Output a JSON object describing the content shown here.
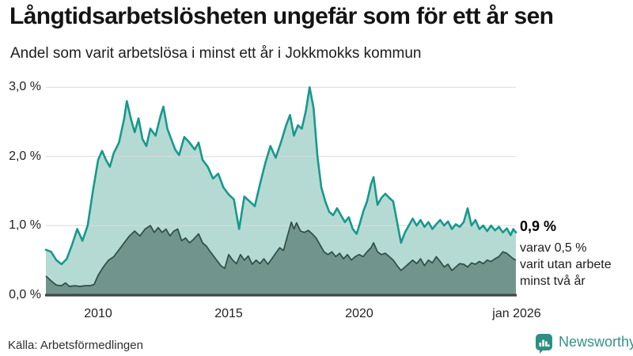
{
  "header": {
    "title": "Långtidsarbetslösheten ungefär som för ett år sen",
    "subtitle": "Andel som varit arbetslösa i minst ett år i Jokkmokks kommun"
  },
  "footer": {
    "source": "Källa: Arbetsförmedlingen",
    "brand": "Newsworthy"
  },
  "colors": {
    "accent_teal": "#17998c",
    "light_fill": "#b5dad4",
    "dark_line": "#2d4d47",
    "dark_fill": "#71958d",
    "gridline": "#d9d9d9",
    "axis": "#444444",
    "brand_teal": "#2f8e84"
  },
  "chart_data": {
    "type": "area",
    "title": "Andel som varit arbetslösa i minst ett år i Jokkmokks kommun",
    "xlabel": "",
    "ylabel": "",
    "xlim": [
      2008,
      2026.08
    ],
    "ylim": [
      0,
      3.1
    ],
    "grid": "horizontal",
    "y_ticks": [
      {
        "label": "3,0 %",
        "value": 3
      },
      {
        "label": "2,0 %",
        "value": 2
      },
      {
        "label": "1,0 %",
        "value": 1
      },
      {
        "label": "0,0 %",
        "value": 0
      }
    ],
    "x_ticks": [
      {
        "label": "2010",
        "year": 2010
      },
      {
        "label": "2015",
        "year": 2015
      },
      {
        "label": "2020",
        "year": 2020
      },
      {
        "label": "jan 2026",
        "year": 2026.04
      }
    ],
    "annotation": {
      "value_label": "0,9 %",
      "lines": [
        "varav 0,5 %",
        "varit utan arbete",
        "minst två år"
      ]
    },
    "series": [
      {
        "name": "Arbetslösa minst ett år",
        "line_color": "#17998c",
        "fill_color": "#b5dad4",
        "points": [
          [
            2008.0,
            0.65
          ],
          [
            2008.2,
            0.62
          ],
          [
            2008.4,
            0.5
          ],
          [
            2008.6,
            0.44
          ],
          [
            2008.8,
            0.52
          ],
          [
            2009.0,
            0.72
          ],
          [
            2009.2,
            0.95
          ],
          [
            2009.4,
            0.78
          ],
          [
            2009.6,
            1.0
          ],
          [
            2009.8,
            1.5
          ],
          [
            2010.0,
            1.95
          ],
          [
            2010.15,
            2.08
          ],
          [
            2010.3,
            1.95
          ],
          [
            2010.45,
            1.85
          ],
          [
            2010.6,
            2.05
          ],
          [
            2010.8,
            2.2
          ],
          [
            2011.0,
            2.55
          ],
          [
            2011.1,
            2.8
          ],
          [
            2011.25,
            2.55
          ],
          [
            2011.4,
            2.35
          ],
          [
            2011.55,
            2.55
          ],
          [
            2011.7,
            2.25
          ],
          [
            2011.85,
            2.15
          ],
          [
            2012.0,
            2.4
          ],
          [
            2012.2,
            2.3
          ],
          [
            2012.4,
            2.6
          ],
          [
            2012.5,
            2.72
          ],
          [
            2012.65,
            2.4
          ],
          [
            2012.8,
            2.25
          ],
          [
            2012.95,
            2.1
          ],
          [
            2013.1,
            2.02
          ],
          [
            2013.3,
            2.28
          ],
          [
            2013.5,
            2.2
          ],
          [
            2013.7,
            2.1
          ],
          [
            2013.85,
            2.2
          ],
          [
            2014.0,
            1.95
          ],
          [
            2014.2,
            1.85
          ],
          [
            2014.4,
            1.68
          ],
          [
            2014.6,
            1.75
          ],
          [
            2014.8,
            1.55
          ],
          [
            2015.0,
            1.45
          ],
          [
            2015.2,
            1.38
          ],
          [
            2015.4,
            0.95
          ],
          [
            2015.6,
            1.42
          ],
          [
            2015.8,
            1.35
          ],
          [
            2016.0,
            1.28
          ],
          [
            2016.2,
            1.6
          ],
          [
            2016.4,
            1.9
          ],
          [
            2016.6,
            2.15
          ],
          [
            2016.8,
            1.98
          ],
          [
            2017.0,
            2.2
          ],
          [
            2017.2,
            2.45
          ],
          [
            2017.35,
            2.6
          ],
          [
            2017.5,
            2.3
          ],
          [
            2017.65,
            2.45
          ],
          [
            2017.8,
            2.4
          ],
          [
            2017.95,
            2.65
          ],
          [
            2018.1,
            3.0
          ],
          [
            2018.25,
            2.7
          ],
          [
            2018.4,
            2.0
          ],
          [
            2018.55,
            1.55
          ],
          [
            2018.7,
            1.35
          ],
          [
            2018.85,
            1.2
          ],
          [
            2019.0,
            1.15
          ],
          [
            2019.15,
            1.25
          ],
          [
            2019.3,
            1.15
          ],
          [
            2019.45,
            1.05
          ],
          [
            2019.6,
            1.12
          ],
          [
            2019.75,
            0.95
          ],
          [
            2019.9,
            0.88
          ],
          [
            2020.0,
            1.0
          ],
          [
            2020.15,
            1.2
          ],
          [
            2020.3,
            1.35
          ],
          [
            2020.45,
            1.6
          ],
          [
            2020.55,
            1.7
          ],
          [
            2020.7,
            1.3
          ],
          [
            2020.85,
            1.4
          ],
          [
            2021.0,
            1.46
          ],
          [
            2021.15,
            1.4
          ],
          [
            2021.3,
            1.35
          ],
          [
            2021.45,
            1.05
          ],
          [
            2021.6,
            0.75
          ],
          [
            2021.75,
            0.9
          ],
          [
            2021.9,
            1.0
          ],
          [
            2022.05,
            1.1
          ],
          [
            2022.2,
            1.0
          ],
          [
            2022.35,
            1.08
          ],
          [
            2022.5,
            0.98
          ],
          [
            2022.65,
            1.05
          ],
          [
            2022.8,
            0.95
          ],
          [
            2022.95,
            1.02
          ],
          [
            2023.1,
            1.08
          ],
          [
            2023.25,
            1.0
          ],
          [
            2023.4,
            1.06
          ],
          [
            2023.55,
            0.95
          ],
          [
            2023.7,
            1.02
          ],
          [
            2023.85,
            0.98
          ],
          [
            2024.0,
            1.05
          ],
          [
            2024.15,
            1.25
          ],
          [
            2024.3,
            1.0
          ],
          [
            2024.45,
            1.08
          ],
          [
            2024.6,
            0.95
          ],
          [
            2024.75,
            1.0
          ],
          [
            2024.9,
            0.92
          ],
          [
            2025.05,
            1.0
          ],
          [
            2025.2,
            0.93
          ],
          [
            2025.35,
            0.98
          ],
          [
            2025.5,
            0.9
          ],
          [
            2025.65,
            0.96
          ],
          [
            2025.8,
            0.86
          ],
          [
            2025.9,
            0.95
          ],
          [
            2026.0,
            0.9
          ]
        ]
      },
      {
        "name": "varav utan arbete minst två år",
        "line_color": "#2d4d47",
        "fill_color": "#71958d",
        "points": [
          [
            2008.0,
            0.27
          ],
          [
            2008.2,
            0.2
          ],
          [
            2008.4,
            0.14
          ],
          [
            2008.6,
            0.13
          ],
          [
            2008.75,
            0.17
          ],
          [
            2008.9,
            0.12
          ],
          [
            2009.1,
            0.13
          ],
          [
            2009.3,
            0.12
          ],
          [
            2009.5,
            0.13
          ],
          [
            2009.7,
            0.13
          ],
          [
            2009.85,
            0.15
          ],
          [
            2010.0,
            0.28
          ],
          [
            2010.2,
            0.4
          ],
          [
            2010.4,
            0.5
          ],
          [
            2010.6,
            0.55
          ],
          [
            2010.8,
            0.65
          ],
          [
            2011.0,
            0.75
          ],
          [
            2011.2,
            0.85
          ],
          [
            2011.4,
            0.92
          ],
          [
            2011.6,
            0.85
          ],
          [
            2011.8,
            0.95
          ],
          [
            2012.0,
            1.0
          ],
          [
            2012.15,
            0.9
          ],
          [
            2012.3,
            0.97
          ],
          [
            2012.45,
            0.9
          ],
          [
            2012.6,
            0.95
          ],
          [
            2012.75,
            0.85
          ],
          [
            2012.9,
            0.92
          ],
          [
            2013.05,
            0.95
          ],
          [
            2013.2,
            0.78
          ],
          [
            2013.35,
            0.82
          ],
          [
            2013.5,
            0.75
          ],
          [
            2013.65,
            0.8
          ],
          [
            2013.85,
            0.88
          ],
          [
            2014.0,
            0.75
          ],
          [
            2014.15,
            0.7
          ],
          [
            2014.3,
            0.62
          ],
          [
            2014.5,
            0.52
          ],
          [
            2014.7,
            0.42
          ],
          [
            2014.85,
            0.38
          ],
          [
            2015.0,
            0.58
          ],
          [
            2015.15,
            0.5
          ],
          [
            2015.3,
            0.45
          ],
          [
            2015.45,
            0.58
          ],
          [
            2015.6,
            0.5
          ],
          [
            2015.75,
            0.56
          ],
          [
            2015.9,
            0.44
          ],
          [
            2016.05,
            0.5
          ],
          [
            2016.2,
            0.45
          ],
          [
            2016.35,
            0.52
          ],
          [
            2016.5,
            0.44
          ],
          [
            2016.65,
            0.52
          ],
          [
            2016.8,
            0.6
          ],
          [
            2016.95,
            0.68
          ],
          [
            2017.1,
            0.64
          ],
          [
            2017.25,
            0.85
          ],
          [
            2017.4,
            1.05
          ],
          [
            2017.5,
            0.95
          ],
          [
            2017.6,
            1.04
          ],
          [
            2017.75,
            0.92
          ],
          [
            2017.9,
            0.9
          ],
          [
            2018.05,
            0.93
          ],
          [
            2018.2,
            0.88
          ],
          [
            2018.35,
            0.82
          ],
          [
            2018.5,
            0.72
          ],
          [
            2018.65,
            0.62
          ],
          [
            2018.8,
            0.58
          ],
          [
            2018.95,
            0.62
          ],
          [
            2019.1,
            0.55
          ],
          [
            2019.25,
            0.6
          ],
          [
            2019.4,
            0.52
          ],
          [
            2019.55,
            0.58
          ],
          [
            2019.7,
            0.5
          ],
          [
            2019.85,
            0.55
          ],
          [
            2020.0,
            0.58
          ],
          [
            2020.15,
            0.55
          ],
          [
            2020.3,
            0.62
          ],
          [
            2020.45,
            0.68
          ],
          [
            2020.55,
            0.75
          ],
          [
            2020.7,
            0.62
          ],
          [
            2020.85,
            0.58
          ],
          [
            2021.0,
            0.6
          ],
          [
            2021.15,
            0.55
          ],
          [
            2021.3,
            0.5
          ],
          [
            2021.45,
            0.42
          ],
          [
            2021.6,
            0.35
          ],
          [
            2021.75,
            0.4
          ],
          [
            2021.9,
            0.45
          ],
          [
            2022.05,
            0.5
          ],
          [
            2022.2,
            0.45
          ],
          [
            2022.35,
            0.52
          ],
          [
            2022.5,
            0.42
          ],
          [
            2022.65,
            0.5
          ],
          [
            2022.8,
            0.46
          ],
          [
            2022.95,
            0.55
          ],
          [
            2023.1,
            0.48
          ],
          [
            2023.25,
            0.4
          ],
          [
            2023.4,
            0.44
          ],
          [
            2023.55,
            0.35
          ],
          [
            2023.7,
            0.4
          ],
          [
            2023.85,
            0.45
          ],
          [
            2024.0,
            0.44
          ],
          [
            2024.15,
            0.4
          ],
          [
            2024.3,
            0.46
          ],
          [
            2024.45,
            0.44
          ],
          [
            2024.6,
            0.48
          ],
          [
            2024.75,
            0.45
          ],
          [
            2024.9,
            0.5
          ],
          [
            2025.05,
            0.48
          ],
          [
            2025.2,
            0.52
          ],
          [
            2025.35,
            0.55
          ],
          [
            2025.5,
            0.62
          ],
          [
            2025.65,
            0.6
          ],
          [
            2025.8,
            0.55
          ],
          [
            2025.9,
            0.52
          ],
          [
            2026.0,
            0.5
          ]
        ]
      }
    ]
  }
}
